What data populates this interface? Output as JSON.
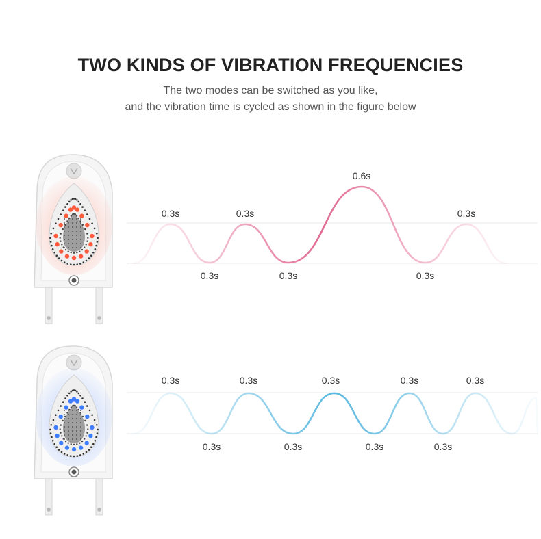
{
  "header": {
    "title": "TWO KINDS OF VIBRATION FREQUENCIES",
    "subtitle_line1": "The two modes can be switched as you like,",
    "subtitle_line2": "and the vibration time is cycled as shown in the figure below"
  },
  "modes": [
    {
      "light_color": "red",
      "wave_color": "#e26a92",
      "peak_labels": [
        "0.3s",
        "0.3s",
        "0.6s",
        "0.3s"
      ],
      "trough_labels": [
        "0.3s",
        "0.3s",
        "0.3s"
      ]
    },
    {
      "light_color": "blue",
      "wave_color": "#5ab8e0",
      "peak_labels": [
        "0.3s",
        "0.3s",
        "0.3s",
        "0.3s",
        "0.3s"
      ],
      "trough_labels": [
        "0.3s",
        "0.3s",
        "0.3s",
        "0.3s"
      ]
    }
  ],
  "colors": {
    "red_led": "#ff5a3c",
    "blue_led": "#3f7dff",
    "device_body": "#f4f4f4"
  }
}
